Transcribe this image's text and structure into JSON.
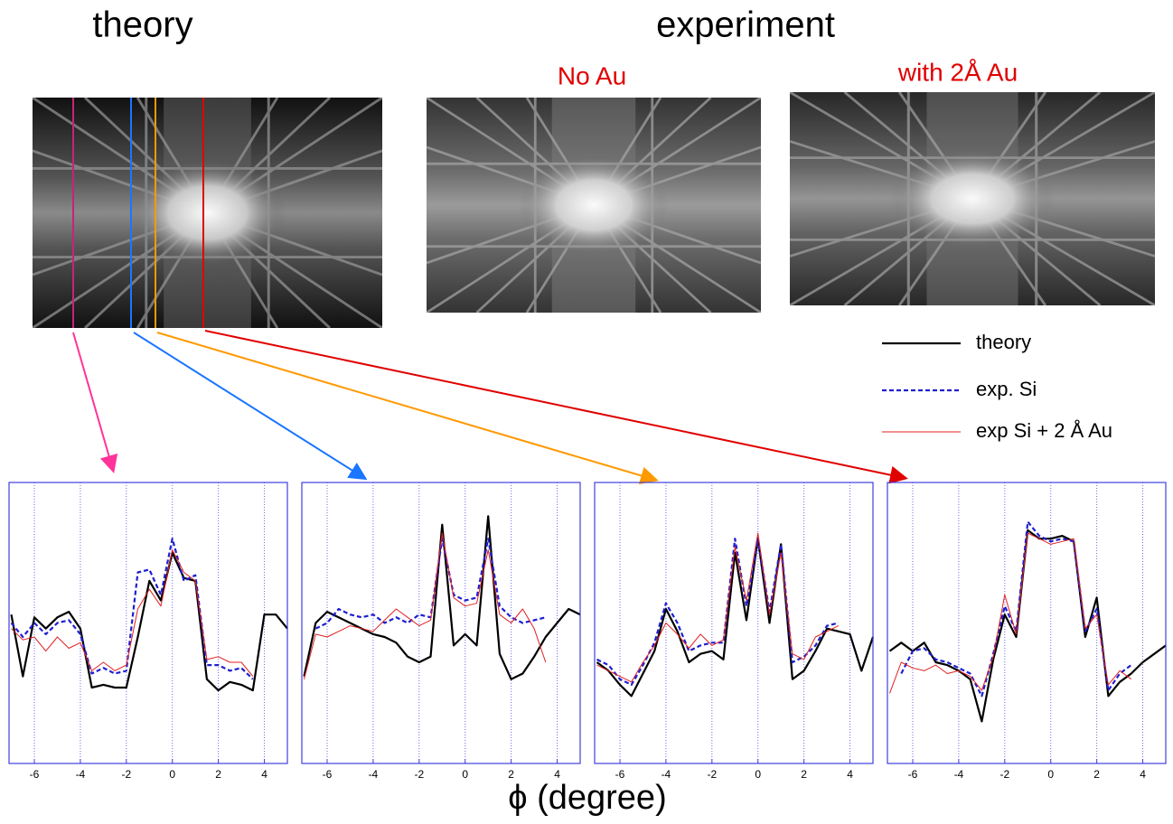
{
  "labels": {
    "theory": "theory",
    "experiment": "experiment",
    "no_au": "No Au",
    "with_au": "with  2Å Au",
    "x_axis": "ϕ (degree)"
  },
  "chart_data": [
    {
      "type": "line",
      "x": [
        -7,
        -6.5,
        -6,
        -5.5,
        -5,
        -4.5,
        -4,
        -3.5,
        -3,
        -2.5,
        -2,
        -1.5,
        -1,
        -0.5,
        0,
        0.5,
        1,
        1.5,
        2,
        2.5,
        3,
        3.5,
        4,
        4.5,
        5
      ],
      "xlim": [
        -7.1,
        5
      ],
      "ylim": [
        0,
        10
      ],
      "xticks": [
        -6,
        -4,
        -2,
        0,
        2,
        4
      ],
      "grid": true,
      "series": [
        {
          "name": "theory",
          "color": "#000000",
          "linestyle": "solid",
          "values": [
            5.3,
            3.1,
            5.2,
            4.8,
            5.2,
            5.4,
            4.8,
            2.7,
            2.8,
            2.7,
            2.7,
            4.5,
            6.5,
            5.8,
            7.5,
            6.6,
            6.5,
            3.0,
            2.6,
            2.9,
            2.8,
            2.6,
            5.3,
            5.3,
            4.8
          ]
        },
        {
          "name": "exp. Si",
          "color": "#1f1fd0",
          "linestyle": "dashed",
          "values": [
            5.0,
            4.5,
            5.0,
            4.6,
            5.0,
            5.1,
            4.6,
            3.2,
            3.4,
            3.2,
            3.3,
            6.8,
            6.9,
            6.0,
            8.0,
            6.5,
            6.7,
            3.5,
            3.5,
            3.3,
            3.4,
            3.0,
            null,
            null,
            null
          ]
        },
        {
          "name": "exp Si + 2 Å Au",
          "color": "#e02020",
          "linestyle": "thin",
          "values": [
            4.8,
            4.4,
            4.5,
            4.0,
            4.5,
            4.1,
            4.3,
            3.3,
            3.6,
            3.3,
            3.5,
            5.5,
            6.2,
            5.6,
            7.6,
            6.8,
            6.5,
            3.7,
            3.8,
            3.6,
            3.6,
            3.1,
            null,
            null,
            null
          ]
        }
      ]
    },
    {
      "type": "line",
      "x": [
        -7,
        -6.5,
        -6,
        -5.5,
        -5,
        -4.5,
        -4,
        -3.5,
        -3,
        -2.5,
        -2,
        -1.5,
        -1,
        -0.5,
        0,
        0.5,
        1,
        1.5,
        2,
        2.5,
        3,
        3.5,
        4,
        4.5,
        5
      ],
      "xlim": [
        -7.1,
        5
      ],
      "ylim": [
        0,
        10
      ],
      "xticks": [
        -6,
        -4,
        -2,
        0,
        2,
        4
      ],
      "grid": true,
      "series": [
        {
          "name": "theory",
          "color": "#000000",
          "linestyle": "solid",
          "values": [
            3.1,
            5.0,
            5.4,
            5.2,
            5.0,
            4.8,
            4.6,
            4.5,
            4.3,
            3.8,
            3.6,
            3.8,
            8.5,
            4.2,
            4.6,
            4.2,
            8.8,
            3.9,
            3.0,
            3.2,
            3.8,
            4.5,
            5.0,
            5.5,
            5.3
          ]
        },
        {
          "name": "exp. Si",
          "color": "#1f1fd0",
          "linestyle": "dashed",
          "values": [
            null,
            4.8,
            5.0,
            5.5,
            5.3,
            5.2,
            5.3,
            5.0,
            5.2,
            5.0,
            5.3,
            5.2,
            8.0,
            6.0,
            5.8,
            5.9,
            8.0,
            5.6,
            5.2,
            5.0,
            5.1,
            5.2,
            null,
            null,
            null
          ]
        },
        {
          "name": "exp Si + 2 Å Au",
          "color": "#e02020",
          "linestyle": "thin",
          "values": [
            3.0,
            4.6,
            4.5,
            4.7,
            4.9,
            4.8,
            4.7,
            5.1,
            5.5,
            5.2,
            4.9,
            5.1,
            8.2,
            5.9,
            5.6,
            5.7,
            7.6,
            5.3,
            5.0,
            5.5,
            4.8,
            3.6,
            null,
            null,
            null
          ]
        }
      ]
    },
    {
      "type": "line",
      "x": [
        -7,
        -6.5,
        -6,
        -5.5,
        -5,
        -4.5,
        -4,
        -3.5,
        -3,
        -2.5,
        -2,
        -1.5,
        -1,
        -0.5,
        0,
        0.5,
        1,
        1.5,
        2,
        2.5,
        3,
        3.5,
        4,
        4.5,
        5
      ],
      "xlim": [
        -7.1,
        5
      ],
      "ylim": [
        0,
        10
      ],
      "xticks": [
        -6,
        -4,
        -2,
        0,
        2,
        4
      ],
      "grid": true,
      "series": [
        {
          "name": "theory",
          "color": "#000000",
          "linestyle": "solid",
          "values": [
            3.6,
            3.3,
            2.8,
            2.4,
            3.2,
            4.0,
            5.5,
            4.7,
            3.6,
            3.9,
            4.0,
            3.7,
            7.5,
            5.1,
            8.0,
            5.0,
            7.8,
            3.0,
            3.3,
            4.0,
            4.8,
            4.7,
            4.6,
            3.3,
            4.5
          ]
        },
        {
          "name": "exp. Si",
          "color": "#1f1fd0",
          "linestyle": "dashed",
          "values": [
            3.7,
            3.5,
            3.0,
            2.8,
            3.5,
            4.3,
            5.7,
            5.0,
            4.0,
            4.2,
            4.3,
            4.3,
            8.0,
            5.6,
            8.0,
            5.4,
            7.8,
            3.6,
            3.8,
            4.2,
            4.9,
            5.0,
            null,
            null,
            null
          ]
        },
        {
          "name": "exp Si + 2 Å Au",
          "color": "#e02020",
          "linestyle": "thin",
          "values": [
            3.5,
            3.3,
            3.1,
            2.9,
            3.6,
            4.2,
            5.0,
            4.6,
            4.1,
            4.6,
            4.2,
            4.4,
            7.7,
            5.8,
            8.2,
            5.3,
            7.5,
            3.9,
            3.7,
            4.5,
            4.7,
            4.9,
            null,
            null,
            null
          ]
        }
      ]
    },
    {
      "type": "line",
      "x": [
        -7,
        -6.5,
        -6,
        -5.5,
        -5,
        -4.5,
        -4,
        -3.5,
        -3,
        -2.5,
        -2,
        -1.5,
        -1,
        -0.5,
        0,
        0.5,
        1,
        1.5,
        2,
        2.5,
        3,
        3.5,
        4,
        4.5,
        5
      ],
      "xlim": [
        -7.1,
        5
      ],
      "ylim": [
        0,
        10
      ],
      "xticks": [
        -6,
        -4,
        -2,
        0,
        2,
        4
      ],
      "grid": true,
      "series": [
        {
          "name": "theory",
          "color": "#000000",
          "linestyle": "solid",
          "values": [
            4.0,
            4.3,
            4.0,
            4.3,
            3.6,
            3.5,
            3.3,
            3.0,
            1.5,
            3.7,
            5.3,
            4.5,
            8.3,
            8.0,
            8.0,
            8.1,
            7.9,
            4.5,
            5.9,
            2.4,
            2.9,
            3.2,
            3.6,
            3.9,
            4.2
          ]
        },
        {
          "name": "exp. Si",
          "color": "#1f1fd0",
          "linestyle": "dashed",
          "values": [
            null,
            3.2,
            4.0,
            4.1,
            3.7,
            3.6,
            3.4,
            3.2,
            2.4,
            3.9,
            5.6,
            4.7,
            8.6,
            8.1,
            7.9,
            8.0,
            7.9,
            4.7,
            5.5,
            2.6,
            3.2,
            3.5,
            null,
            null,
            null
          ]
        },
        {
          "name": "exp Si + 2 Å Au",
          "color": "#e02020",
          "linestyle": "thin",
          "values": [
            2.5,
            3.6,
            3.4,
            3.3,
            3.5,
            3.2,
            3.3,
            3.1,
            2.6,
            3.8,
            6.0,
            4.6,
            8.2,
            8.0,
            7.8,
            7.9,
            8.0,
            4.8,
            5.3,
            2.8,
            3.3,
            3.0,
            null,
            null,
            null
          ]
        }
      ]
    }
  ]
}
